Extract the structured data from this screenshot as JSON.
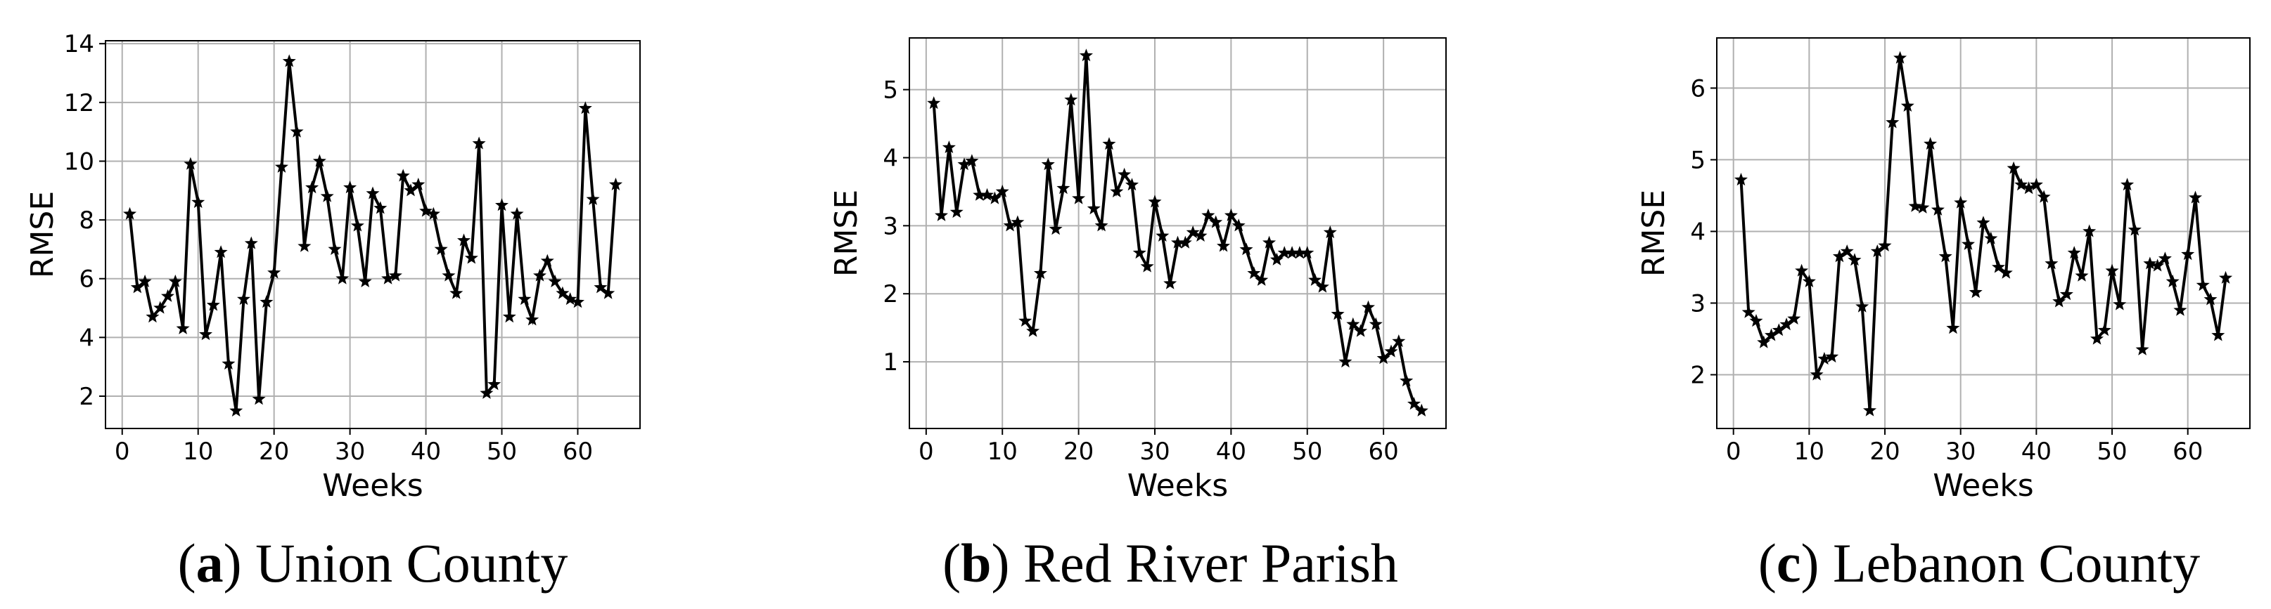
{
  "chart_data": [
    {
      "type": "line",
      "caption": [
        "(",
        "a",
        ") Union County"
      ],
      "xlabel": "Weeks",
      "ylabel": "RMSE",
      "color": "#000000",
      "grid": true,
      "xlim": [
        -2.2,
        68.2
      ],
      "ylim": [
        0.9,
        14.1
      ],
      "xticks": [
        0,
        10,
        20,
        30,
        40,
        50,
        60
      ],
      "yticks": [
        2,
        4,
        6,
        8,
        10,
        12,
        14
      ],
      "x": [
        1,
        2,
        3,
        4,
        5,
        6,
        7,
        8,
        9,
        10,
        11,
        12,
        13,
        14,
        15,
        16,
        17,
        18,
        19,
        20,
        21,
        22,
        23,
        24,
        25,
        26,
        27,
        28,
        29,
        30,
        31,
        32,
        33,
        34,
        35,
        36,
        37,
        38,
        39,
        40,
        41,
        42,
        43,
        44,
        45,
        46,
        47,
        48,
        49,
        50,
        51,
        52,
        53,
        54,
        55,
        56,
        57,
        58,
        59,
        60,
        61,
        62,
        63,
        64,
        65
      ],
      "values": [
        8.2,
        5.7,
        5.9,
        4.7,
        5.0,
        5.4,
        5.9,
        4.3,
        9.9,
        8.6,
        4.1,
        5.1,
        6.9,
        3.1,
        1.5,
        5.3,
        7.2,
        1.9,
        5.2,
        6.2,
        9.8,
        13.4,
        11.0,
        7.1,
        9.1,
        10.0,
        8.8,
        7.0,
        6.0,
        9.1,
        7.8,
        5.9,
        8.9,
        8.4,
        6.0,
        6.1,
        9.5,
        9.0,
        9.2,
        8.3,
        8.2,
        7.0,
        6.1,
        5.5,
        7.3,
        6.7,
        10.6,
        2.1,
        2.4,
        8.5,
        4.7,
        8.2,
        5.3,
        4.6,
        6.1,
        6.6,
        5.9,
        5.5,
        5.3,
        5.2,
        11.8,
        8.7,
        5.7,
        5.5,
        9.2
      ]
    },
    {
      "type": "line",
      "caption": [
        "(",
        "b",
        ") Red River Parish"
      ],
      "xlabel": "Weeks",
      "ylabel": "RMSE",
      "color": "#000000",
      "grid": true,
      "xlim": [
        -2.2,
        68.2
      ],
      "ylim": [
        0.02,
        5.76
      ],
      "xticks": [
        0,
        10,
        20,
        30,
        40,
        50,
        60
      ],
      "yticks": [
        1,
        2,
        3,
        4,
        5
      ],
      "x": [
        1,
        2,
        3,
        4,
        5,
        6,
        7,
        8,
        9,
        10,
        11,
        12,
        13,
        14,
        15,
        16,
        17,
        18,
        19,
        20,
        21,
        22,
        23,
        24,
        25,
        26,
        27,
        28,
        29,
        30,
        31,
        32,
        33,
        34,
        35,
        36,
        37,
        38,
        39,
        40,
        41,
        42,
        43,
        44,
        45,
        46,
        47,
        48,
        49,
        50,
        51,
        52,
        53,
        54,
        55,
        56,
        57,
        58,
        59,
        60,
        61,
        62,
        63,
        64,
        65
      ],
      "values": [
        4.8,
        3.15,
        4.15,
        3.2,
        3.9,
        3.95,
        3.45,
        3.45,
        3.4,
        3.5,
        3.0,
        3.05,
        1.6,
        1.45,
        2.3,
        3.9,
        2.95,
        3.55,
        4.85,
        3.4,
        5.5,
        3.25,
        3.0,
        4.2,
        3.5,
        3.75,
        3.6,
        2.6,
        2.4,
        3.35,
        2.85,
        2.15,
        2.75,
        2.75,
        2.9,
        2.85,
        3.15,
        3.05,
        2.7,
        3.15,
        3.0,
        2.65,
        2.3,
        2.2,
        2.75,
        2.5,
        2.6,
        2.6,
        2.6,
        2.6,
        2.2,
        2.1,
        2.9,
        1.7,
        1.0,
        1.55,
        1.45,
        1.8,
        1.55,
        1.05,
        1.15,
        1.3,
        0.72,
        0.38,
        0.28
      ]
    },
    {
      "type": "line",
      "caption": [
        "(",
        "c",
        ") Lebanon County"
      ],
      "xlabel": "Weeks",
      "ylabel": "RMSE",
      "color": "#000000",
      "grid": true,
      "xlim": [
        -2.2,
        68.2
      ],
      "ylim": [
        1.25,
        6.7
      ],
      "xticks": [
        0,
        10,
        20,
        30,
        40,
        50,
        60
      ],
      "yticks": [
        2,
        3,
        4,
        5,
        6
      ],
      "x": [
        1,
        2,
        3,
        4,
        5,
        6,
        7,
        8,
        9,
        10,
        11,
        12,
        13,
        14,
        15,
        16,
        17,
        18,
        19,
        20,
        21,
        22,
        23,
        24,
        25,
        26,
        27,
        28,
        29,
        30,
        31,
        32,
        33,
        34,
        35,
        36,
        37,
        38,
        39,
        40,
        41,
        42,
        43,
        44,
        45,
        46,
        47,
        48,
        49,
        50,
        51,
        52,
        53,
        54,
        55,
        56,
        57,
        58,
        59,
        60,
        61,
        62,
        63,
        64,
        65
      ],
      "values": [
        4.72,
        2.87,
        2.75,
        2.45,
        2.55,
        2.62,
        2.7,
        2.78,
        3.45,
        3.3,
        2.0,
        2.22,
        2.25,
        3.65,
        3.72,
        3.6,
        2.95,
        1.5,
        3.72,
        3.8,
        5.52,
        6.42,
        5.75,
        4.35,
        4.33,
        5.22,
        4.3,
        3.65,
        2.65,
        4.4,
        3.82,
        3.15,
        4.12,
        3.9,
        3.5,
        3.42,
        4.88,
        4.65,
        4.6,
        4.65,
        4.48,
        3.55,
        3.02,
        3.12,
        3.7,
        3.38,
        4.0,
        2.5,
        2.62,
        3.45,
        2.98,
        4.65,
        4.02,
        2.35,
        3.55,
        3.52,
        3.62,
        3.3,
        2.9,
        3.68,
        4.47,
        3.25,
        3.05,
        2.55,
        3.35
      ]
    }
  ]
}
